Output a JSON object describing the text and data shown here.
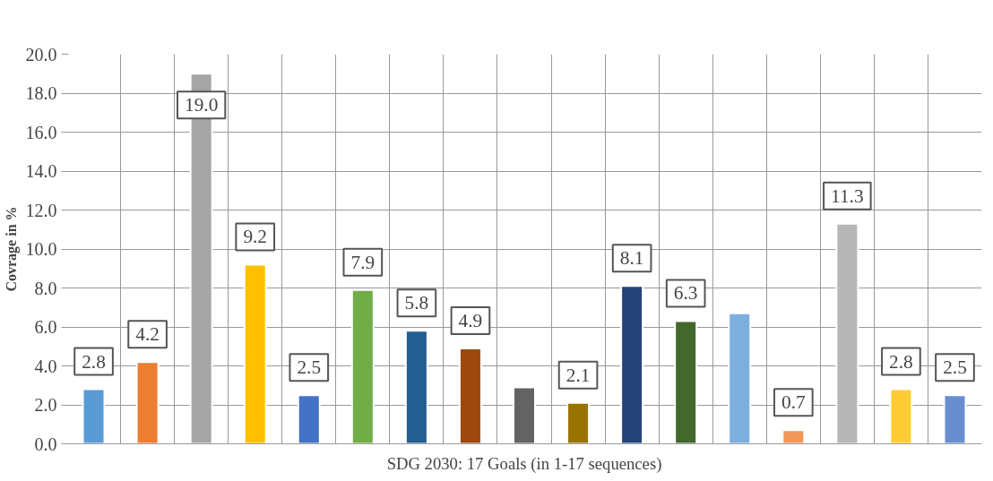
{
  "chart_data": {
    "type": "bar",
    "xlabel": "SDG 2030: 17 Goals (in 1-17 sequences)",
    "ylabel": "Covrage in %",
    "categories": [
      null,
      null,
      null,
      null,
      null,
      null,
      null,
      null,
      null,
      null,
      null,
      null,
      null,
      null,
      null,
      null,
      null
    ],
    "values": [
      2.8,
      4.2,
      19.0,
      9.2,
      2.5,
      7.9,
      5.8,
      4.9,
      2.9,
      2.1,
      8.1,
      6.3,
      6.7,
      0.7,
      11.3,
      2.8,
      2.5
    ],
    "value_labels": [
      "2.8",
      "4.2",
      "19.0",
      "9.2",
      "2.5",
      "7.9",
      "5.8",
      "4.9",
      null,
      "2.1",
      "8.1",
      "6.3",
      null,
      "0.7",
      "11.3",
      "2.8",
      "2.5"
    ],
    "colors": [
      "#5b9bd5",
      "#ed7d31",
      "#a5a5a5",
      "#ffc000",
      "#4472c4",
      "#70ad47",
      "#255e91",
      "#9e480e",
      "#636363",
      "#997300",
      "#264478",
      "#43682b",
      "#7cafdd",
      "#f1975a",
      "#b7b7b7",
      "#ffcd33",
      "#698ed0"
    ],
    "ylim": [
      0,
      20
    ],
    "yticks": [
      {
        "value": 0,
        "label": "0.0"
      },
      {
        "value": 2,
        "label": "2.0"
      },
      {
        "value": 4,
        "label": "4.0"
      },
      {
        "value": 6,
        "label": "6.0"
      },
      {
        "value": 8,
        "label": "8.0"
      },
      {
        "value": 10,
        "label": "10.0"
      },
      {
        "value": 12,
        "label": "12.0"
      },
      {
        "value": 14,
        "label": "14.0"
      },
      {
        "value": 16,
        "label": "16.0"
      },
      {
        "value": 18,
        "label": "18.0"
      },
      {
        "value": 20,
        "label": "20.0"
      }
    ],
    "grid": true,
    "tick_labels": "y"
  }
}
